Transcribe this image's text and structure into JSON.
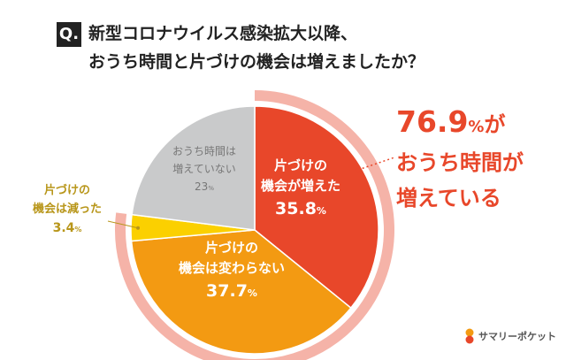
{
  "header": {
    "badge": "Q.",
    "title_line1": "新型コロナウイルス感染拡大以降、",
    "title_line2": "おうち時間と片づけの機会は増えましたか？"
  },
  "chart_data": {
    "type": "pie",
    "title": "新型コロナウイルス感染拡大以降、おうち時間と片づけの機会は増えましたか？",
    "slices": [
      {
        "name": "片づけの機会が増えた",
        "line1": "片づけの",
        "line2": "機会が増えた",
        "value": 35.8,
        "label_num": "35.8",
        "unit": "%",
        "color": "#e8472a",
        "text_color": "#ffffff"
      },
      {
        "name": "片づけの機会は変わらない",
        "line1": "片づけの",
        "line2": "機会は変わらない",
        "value": 37.7,
        "label_num": "37.7",
        "unit": "%",
        "color": "#f39a12",
        "text_color": "#ffffff"
      },
      {
        "name": "片づけの機会は減った",
        "line1": "片づけの",
        "line2": "機会は減った",
        "value": 3.4,
        "label_num": "3.4",
        "unit": "%",
        "color": "#fbd000",
        "text_color": "#b8961a"
      },
      {
        "name": "おうち時間は増えていない",
        "line1": "おうち時間は",
        "line2": "増えていない",
        "value": 23,
        "label_num": "23",
        "unit": "%",
        "color": "#c9cacb",
        "text_color": "#777777"
      }
    ],
    "ring_color": "#f5b3a8",
    "annotation": {
      "value": "76.9",
      "unit": "%",
      "suffix": "が",
      "line2": "おうち時間が",
      "line3": "増えている",
      "color": "#e8472a"
    }
  },
  "logo": {
    "text": "サマリーポケット",
    "color": "#f39a12"
  }
}
